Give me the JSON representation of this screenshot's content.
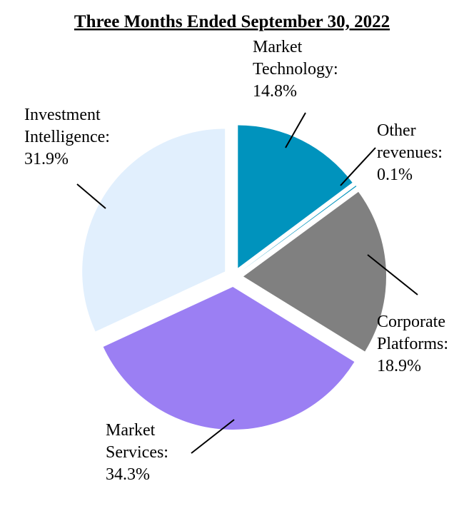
{
  "chart_data": {
    "type": "pie",
    "title": "Three Months Ended September 30, 2022",
    "slices": [
      {
        "lines": [
          "Market",
          "Technology:",
          "14.8%"
        ],
        "value": 14.8,
        "color": "#0093BD",
        "exploded": true
      },
      {
        "lines": [
          "Other",
          "revenues:",
          "0.1%"
        ],
        "value": 0.1,
        "color": "#0093BD",
        "exploded": true
      },
      {
        "lines": [
          "Corporate",
          "Platforms:",
          "18.9%"
        ],
        "value": 18.9,
        "color": "#808080",
        "exploded": true
      },
      {
        "lines": [
          "Market",
          "Services:",
          "34.3%"
        ],
        "value": 34.3,
        "color": "#9B7FF3",
        "exploded": true
      },
      {
        "lines": [
          "Investment",
          "Intelligence:",
          "31.9%"
        ],
        "value": 31.9,
        "color": "#E1EFFD",
        "exploded": true
      }
    ]
  }
}
